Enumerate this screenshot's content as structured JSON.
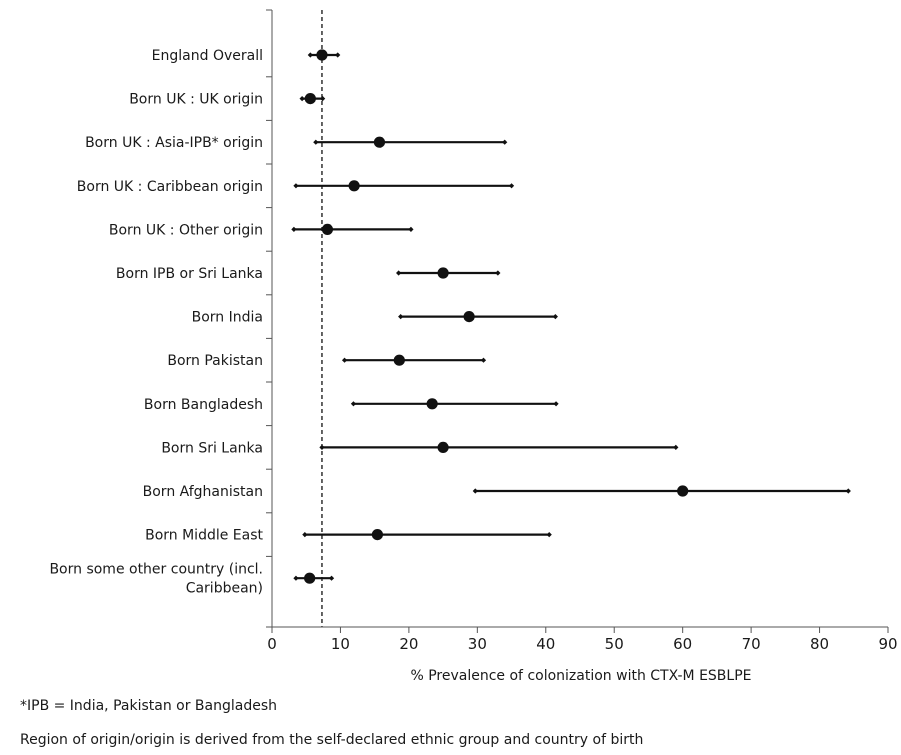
{
  "chart_data": {
    "type": "forest",
    "xlabel": "% Prevalence of colonization with CTX-M ESBLPE",
    "xlim": [
      0,
      90
    ],
    "xticks": [
      0,
      10,
      20,
      30,
      40,
      50,
      60,
      70,
      80,
      90
    ],
    "reference_line": 7.3,
    "rows": [
      {
        "label": [
          "England Overall"
        ],
        "estimate": 7.3,
        "ci": [
          5.6,
          9.6
        ]
      },
      {
        "label": [
          "Born UK : UK origin"
        ],
        "estimate": 5.6,
        "ci": [
          4.4,
          7.4
        ]
      },
      {
        "label": [
          "Born UK : Asia-IPB* origin"
        ],
        "estimate": 15.7,
        "ci": [
          6.4,
          34.0
        ]
      },
      {
        "label": [
          "Born UK : Caribbean origin"
        ],
        "estimate": 12.0,
        "ci": [
          3.5,
          35.0
        ]
      },
      {
        "label": [
          "Born UK : Other origin"
        ],
        "estimate": 8.1,
        "ci": [
          3.2,
          20.3
        ]
      },
      {
        "label": [
          "Born IPB or Sri Lanka"
        ],
        "estimate": 25.0,
        "ci": [
          18.5,
          33.0
        ]
      },
      {
        "label": [
          "Born India"
        ],
        "estimate": 28.8,
        "ci": [
          18.8,
          41.4
        ]
      },
      {
        "label": [
          "Born Pakistan"
        ],
        "estimate": 18.6,
        "ci": [
          10.6,
          30.9
        ]
      },
      {
        "label": [
          "Born Bangladesh"
        ],
        "estimate": 23.4,
        "ci": [
          11.9,
          41.5
        ]
      },
      {
        "label": [
          "Born Sri Lanka"
        ],
        "estimate": 25.0,
        "ci": [
          7.3,
          59.0
        ]
      },
      {
        "label": [
          "Born Afghanistan"
        ],
        "estimate": 60.0,
        "ci": [
          29.7,
          84.2
        ]
      },
      {
        "label": [
          "Born Middle East"
        ],
        "estimate": 15.4,
        "ci": [
          4.8,
          40.5
        ]
      },
      {
        "label": [
          "Born some other country (incl.",
          "Caribbean)"
        ],
        "estimate": 5.5,
        "ci": [
          3.5,
          8.7
        ]
      }
    ]
  },
  "footnotes": {
    "ipb": "*IPB = India, Pakistan or Bangladesh",
    "origin": "Region of origin/origin is derived from the self-declared ethnic group and country of birth"
  }
}
